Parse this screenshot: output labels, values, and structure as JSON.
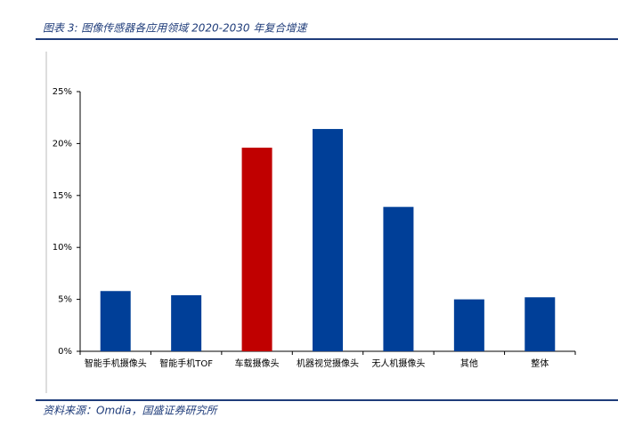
{
  "chart_data": {
    "type": "bar",
    "title": "图表 3: 图像传感器各应用领域 2020-2030 年复合增速",
    "source": "资料来源：Omdia，国盛证券研究所",
    "categories": [
      "智能手机摄像头",
      "智能手机TOF",
      "车载摄像头",
      "机器视觉摄像头",
      "无人机摄像头",
      "其他",
      "整体"
    ],
    "values": [
      5.8,
      5.4,
      19.6,
      21.4,
      13.9,
      5.0,
      5.2
    ],
    "colors": [
      "#003f98",
      "#003f98",
      "#c00000",
      "#003f98",
      "#003f98",
      "#003f98",
      "#003f98"
    ],
    "ylim": [
      0,
      25
    ],
    "yticks": [
      {
        "value": 0,
        "label": "0%"
      },
      {
        "value": 5,
        "label": "5%"
      },
      {
        "value": 10,
        "label": "10%"
      },
      {
        "value": 15,
        "label": "15%"
      },
      {
        "value": 20,
        "label": "20%"
      },
      {
        "value": 25,
        "label": "25%"
      }
    ],
    "grid": false
  }
}
